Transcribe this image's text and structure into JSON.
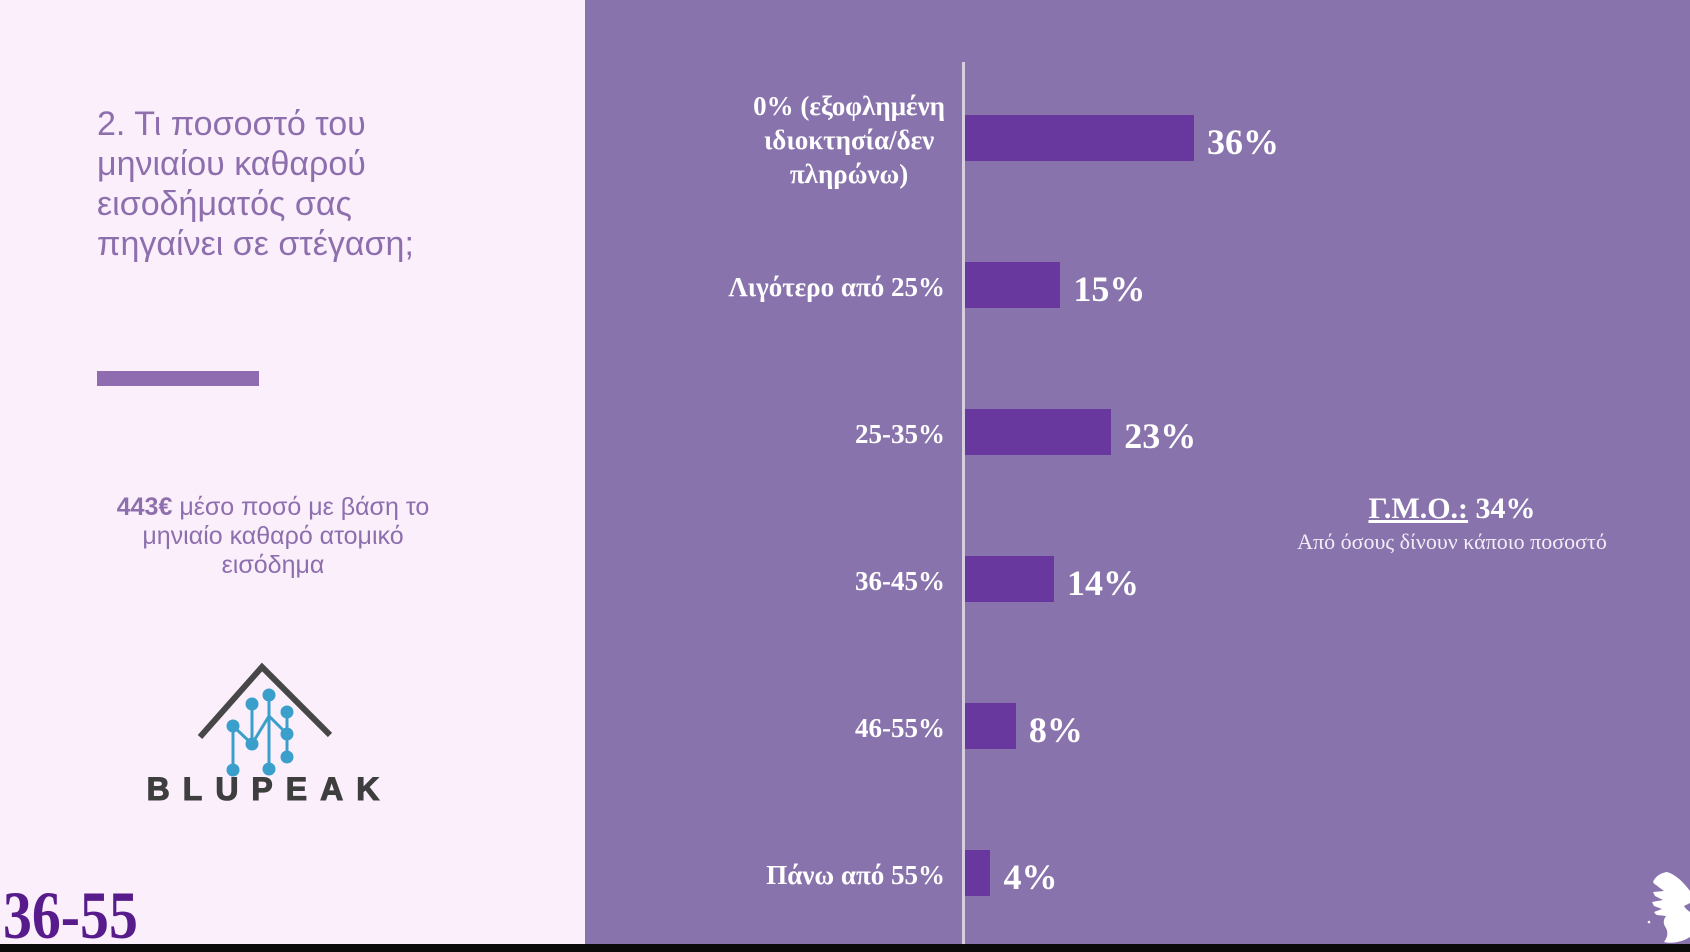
{
  "left_panel": {
    "title": "2. Τι ποσοστό του\nμηνιαίου καθαρού\nεισοδήματός σας\nπηγαίνει σε στέγαση;",
    "avg_amount": "443€",
    "avg_text": "μέσο ποσό με βάση το\nμηνιαίο καθαρό ατομικό\nεισόδημα",
    "logo_text": "BLUPEAK",
    "age_group": "36-55"
  },
  "chart_data": {
    "type": "bar",
    "orientation": "horizontal",
    "categories": [
      "0% (εξοφλημένη\nιδιοκτησία/δεν\nπληρώνω)",
      "Λιγότερο από 25%",
      "25-35%",
      "36-45%",
      "46-55%",
      "Πάνω από 55%"
    ],
    "values": [
      36,
      15,
      23,
      14,
      8,
      4
    ],
    "value_suffix": "%",
    "annotation": {
      "label": "Γ.Μ.Ο.:",
      "value": "34%",
      "note": "Από όσους δίνουν κάποιο ποσοστό"
    },
    "bar_color": "#68389f",
    "panel_background": "#8973ac",
    "axis_line_color": "#d6cfdd"
  }
}
